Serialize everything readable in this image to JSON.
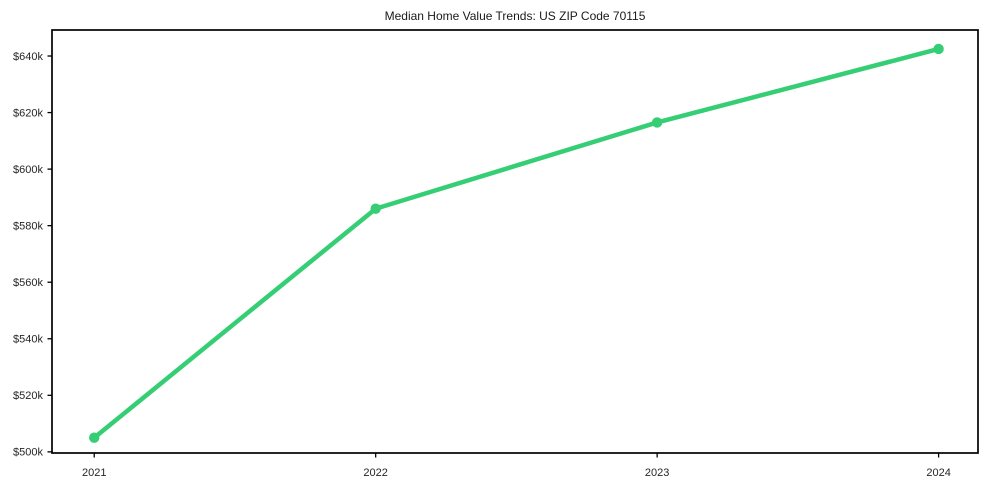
{
  "chart_data": {
    "type": "line",
    "title": "Median Home Value Trends: US ZIP Code 70115",
    "x": [
      2021,
      2022,
      2023,
      2024
    ],
    "x_tick_labels": [
      "2021",
      "2022",
      "2023",
      "2024"
    ],
    "values": [
      505000,
      586000,
      616500,
      642500
    ],
    "y_ticks": [
      500000,
      520000,
      540000,
      560000,
      580000,
      600000,
      620000,
      640000
    ],
    "y_tick_labels": [
      "$500k",
      "$520k",
      "$540k",
      "$560k",
      "$580k",
      "$600k",
      "$620k",
      "$640k"
    ],
    "xlim": [
      2020.85,
      2024.14
    ],
    "ylim": [
      499600,
      649200
    ],
    "grid": false,
    "legend": false,
    "marker": "circle",
    "line_color": "#35ce75",
    "axis_color": "#000000",
    "text_color": "#262626",
    "background_color": "#ffffff"
  }
}
